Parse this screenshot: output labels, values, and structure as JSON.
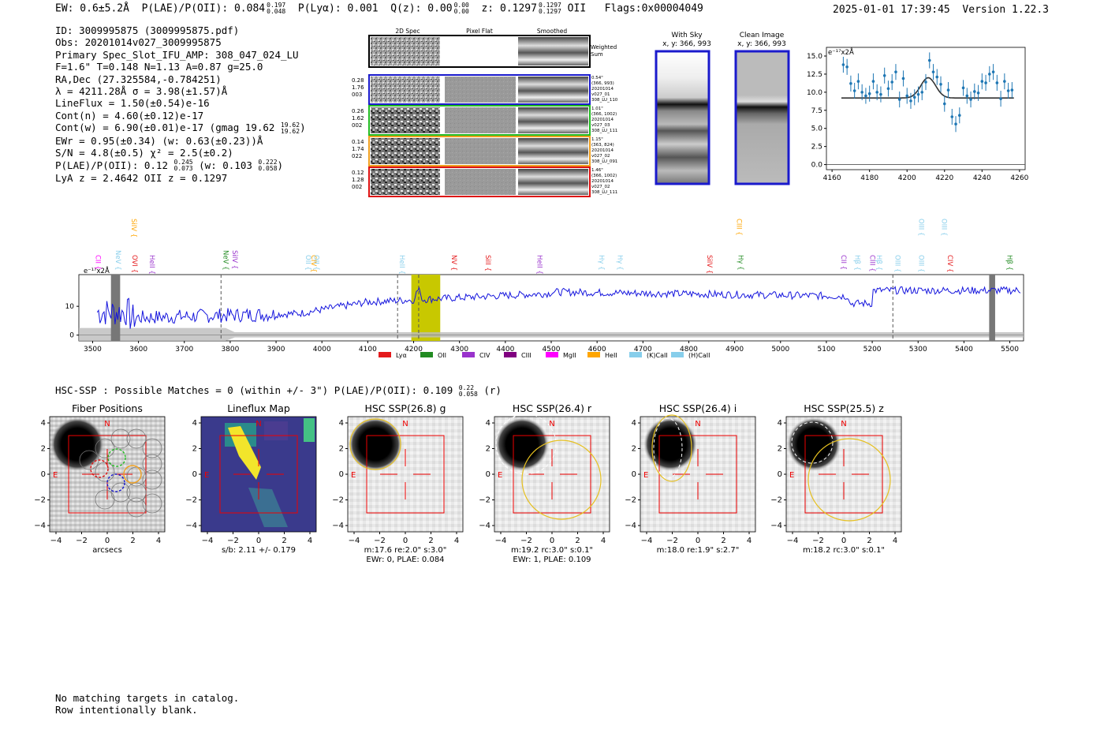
{
  "header": {
    "ew": "EW: 0.6±5.2Å",
    "plae_label": "P(LAE)/P(OII): 0.084",
    "plae_hi": "0.197",
    "plae_lo": "0.048",
    "plya": "P(Lyα): 0.001",
    "qz_label": "Q(z): 0.00",
    "qz_hi": "0.00",
    "qz_lo": "0.00",
    "z_label": "z: 0.1297",
    "z_hi": "0.1297",
    "z_lo": "0.1297",
    "z_line": "OII",
    "flags": "Flags:0x00004049",
    "datetime": "2025-01-01 17:39:45",
    "version": "Version 1.22.3"
  },
  "info": {
    "id": "ID: 3009995875 (3009995875.pdf)",
    "obs": "Obs: 20201014v027_3009995875",
    "primary": "Primary Spec_Slot_IFU_AMP: 308_047_024_LU",
    "seeing": "F=1.6\"  T=0.148  N=1.13  A=0.87  g=25.0",
    "radec": "RA,Dec (27.325584,-0.784251)",
    "wave": "λ = 4211.28Å   σ = 3.98(±1.57)Å",
    "lineflux": "LineFlux = 1.50(±0.54)e-16",
    "contn": "Cont(n) = 4.60(±0.12)e-17",
    "contw": "Cont(w) = 6.90(±0.01)e-17 (gmag 19.62",
    "contw_hi": "19.62",
    "contw_lo": "19.62",
    "ewr": "EWr = 0.95(±0.34) (w: 0.63(±0.23))Å",
    "sn": "S/N = 4.8(±0.5)  χ² = 2.5(±0.2)",
    "plae2": "P(LAE)/P(OII): 0.12",
    "plae2_hi": "0.245",
    "plae2_lo": "0.073",
    "plae2_w": "(w: 0.103",
    "plae2_w_hi": "0.222",
    "plae2_w_lo": "0.058",
    "lya": "LyA z = 2.4642  OII z = 0.1297"
  },
  "cutouts": {
    "headers": [
      "2D Spec",
      "Pixel Flat",
      "Smoothed"
    ],
    "weighted_sum": "Weighted Sum",
    "rows": [
      {
        "left": [
          "0.28",
          "1.76",
          "003"
        ],
        "right": [
          "0.54\"",
          "(366, 993)",
          "20201014",
          "v027_01",
          "308_LU_110"
        ],
        "color": "#1a1acc"
      },
      {
        "left": [
          "0.26",
          "1.62",
          "002"
        ],
        "right": [
          "1.01\"",
          "(366, 1002)",
          "20201014",
          "v027_03",
          "308_LU_111"
        ],
        "color": "#22bb22"
      },
      {
        "left": [
          "0.14",
          "1.74",
          "022"
        ],
        "right": [
          "1.15\"",
          "(363, 824)",
          "20201014",
          "v027_02",
          "308_LU_091"
        ],
        "color": "#f0a020"
      },
      {
        "left": [
          "0.12",
          "1.28",
          "002"
        ],
        "right": [
          "1.46\"",
          "(366, 1002)",
          "20201014",
          "v027_02",
          "308_LU_111"
        ],
        "color": "#dd1111"
      }
    ]
  },
  "sky": {
    "with_sky": "With Sky",
    "with_sky_xy": "x, y: 366, 993",
    "clean": "Clean Image",
    "clean_xy": "x, y: 366, 993"
  },
  "chart_data": [
    {
      "type": "scatter",
      "name": "line-fit-zoom",
      "ylabel": "e⁻¹⁷x2Å",
      "xlim": [
        4157,
        4263
      ],
      "ylim": [
        -0.7,
        16.2
      ],
      "xticks": [
        4160,
        4180,
        4200,
        4220,
        4240,
        4260
      ],
      "yticks": [
        0.0,
        2.5,
        5.0,
        7.5,
        10.0,
        12.5,
        15.0
      ],
      "x": [
        4166,
        4168,
        4170,
        4172,
        4174,
        4176,
        4178,
        4180,
        4182,
        4184,
        4186,
        4188,
        4190,
        4192,
        4194,
        4196,
        4198,
        4200,
        4202,
        4204,
        4206,
        4208,
        4210,
        4212,
        4214,
        4216,
        4218,
        4220,
        4222,
        4224,
        4226,
        4228,
        4230,
        4232,
        4234,
        4236,
        4238,
        4240,
        4242,
        4244,
        4246,
        4248,
        4250,
        4252,
        4254,
        4256
      ],
      "y": [
        13.8,
        13.5,
        11.2,
        10.2,
        11.5,
        10.0,
        9.5,
        9.8,
        11.5,
        10.0,
        9.7,
        12.3,
        10.5,
        11.4,
        12.8,
        9.0,
        11.9,
        9.5,
        8.8,
        9.3,
        9.7,
        10.0,
        11.4,
        14.4,
        12.8,
        12.1,
        11.1,
        8.4,
        10.3,
        6.6,
        5.6,
        6.8,
        10.6,
        9.5,
        9.0,
        10.1,
        9.9,
        11.5,
        11.3,
        12.5,
        12.8,
        11.3,
        9.1,
        11.5,
        10.2,
        10.3
      ],
      "fit": {
        "continuum": 9.2,
        "amplitude": 2.8,
        "center": 4211.3,
        "sigma": 3.98
      }
    },
    {
      "type": "line",
      "name": "full-spectrum",
      "ylabel": "e⁻¹⁷x2Å",
      "xlim": [
        3470,
        5530
      ],
      "ylim": [
        -2,
        21
      ],
      "xticks": [
        3500,
        3600,
        3700,
        3800,
        3900,
        4000,
        4100,
        4200,
        4300,
        4400,
        4500,
        4600,
        4700,
        4800,
        4900,
        5000,
        5100,
        5200,
        5300,
        5400,
        5500
      ],
      "yticks": [
        0,
        10
      ],
      "highlight": [
        4165,
        4258
      ],
      "dashed": [
        3780,
        4165,
        4211,
        5245
      ],
      "hatched": [
        [
          3540,
          3560
        ],
        [
          5455,
          5468
        ]
      ],
      "legend": [
        "Lyα",
        "OII",
        "CIV",
        "CIII",
        "MgII",
        "HeII",
        "(K)CaII",
        "(H)CaII"
      ],
      "legend_colors": [
        "#e41a1c",
        "#228b22",
        "#9932cc",
        "#800080",
        "#ff00ff",
        "#ffa500",
        "#87ceeb",
        "#87ceeb"
      ],
      "lines": [
        {
          "label": "CII",
          "w": 3502,
          "color": "#ff00ff",
          "row": 2
        },
        {
          "label": "NeV",
          "w": 3546,
          "color": "#87ceeb",
          "row": 1
        },
        {
          "label": "SiIV",
          "w": 3580,
          "color": "#ffa500",
          "row": 0
        },
        {
          "label": "OVI",
          "w": 3582,
          "color": "#e41a1c",
          "row": 2
        },
        {
          "label": "HeII",
          "w": 3620,
          "color": "#9932cc",
          "row": 2
        },
        {
          "label": "NeV",
          "w": 3780,
          "color": "#228b22",
          "row": 1
        },
        {
          "label": "SiIV",
          "w": 3800,
          "color": "#9932cc",
          "row": 1
        },
        {
          "label": "OII",
          "w": 3960,
          "color": "#87ceeb",
          "row": 2
        },
        {
          "label": "CIV",
          "w": 3972,
          "color": "#ffa500",
          "row": 2
        },
        {
          "label": "OII",
          "w": 3978,
          "color": "#87ceeb",
          "row": 2
        },
        {
          "label": "HeII",
          "w": 4165,
          "color": "#87ceeb",
          "row": 2
        },
        {
          "label": "NV",
          "w": 4278,
          "color": "#e41a1c",
          "row": 2
        },
        {
          "label": "SiII",
          "w": 4352,
          "color": "#e41a1c",
          "row": 2
        },
        {
          "label": "HeII",
          "w": 4465,
          "color": "#9932cc",
          "row": 2
        },
        {
          "label": "Hγ",
          "w": 4600,
          "color": "#87ceeb",
          "row": 2
        },
        {
          "label": "Hγ",
          "w": 4640,
          "color": "#87ceeb",
          "row": 2
        },
        {
          "label": "SiIV",
          "w": 4835,
          "color": "#e41a1c",
          "row": 2
        },
        {
          "label": "CIII",
          "w": 4900,
          "color": "#ffa500",
          "row": 0
        },
        {
          "label": "Hγ",
          "w": 4903,
          "color": "#228b22",
          "row": 2
        },
        {
          "label": "CII",
          "w": 5128,
          "color": "#9932cc",
          "row": 2
        },
        {
          "label": "Hβ",
          "w": 5158,
          "color": "#87ceeb",
          "row": 2
        },
        {
          "label": "CIII",
          "w": 5190,
          "color": "#9932cc",
          "row": 2
        },
        {
          "label": "Hβ",
          "w": 5205,
          "color": "#87ceeb",
          "row": 2
        },
        {
          "label": "OIII",
          "w": 5245,
          "color": "#87ceeb",
          "row": 2
        },
        {
          "label": "OIII",
          "w": 5297,
          "color": "#87ceeb",
          "row": 0
        },
        {
          "label": "OIII",
          "w": 5297,
          "color": "#87ceeb",
          "row": 2
        },
        {
          "label": "OIII",
          "w": 5347,
          "color": "#87ceeb",
          "row": 0
        },
        {
          "label": "CIV",
          "w": 5360,
          "color": "#e41a1c",
          "row": 2
        },
        {
          "label": "Hβ",
          "w": 5490,
          "color": "#228b22",
          "row": 2
        }
      ]
    }
  ],
  "hsc": {
    "prefix": "HSC-SSP : Possible Matches = 0 (within +/- 3\")  P(LAE)/P(OII): 0.109",
    "hi": "0.22",
    "lo": "0.058",
    "suffix": " (r)"
  },
  "panels": [
    {
      "title": "Fiber Positions",
      "xlabel": "arcsecs",
      "sub": ""
    },
    {
      "title": "Lineflux Map",
      "xlabel": "s/b: 2.11 +/- 0.179",
      "sub": ""
    },
    {
      "title": "HSC SSP(26.8) g",
      "xlabel": "m:17.6  re:2.0\"  s:3.0\"",
      "sub": "EWr: 0, PLAE: 0.084"
    },
    {
      "title": "HSC SSP(26.4) r",
      "xlabel": "m:19.2 rc:3.0\"  s:0.1\"",
      "sub": "EWr: 1, PLAE: 0.109"
    },
    {
      "title": "HSC SSP(26.4) i",
      "xlabel": "m:18.0  re:1.9\"  s:2.7\"",
      "sub": ""
    },
    {
      "title": "HSC SSP(25.5) z",
      "xlabel": "m:18.2 rc:3.0\"  s:0.1\"",
      "sub": ""
    }
  ],
  "panel_axis": {
    "ticks": [
      "−4",
      "−2",
      "0",
      "2",
      "4"
    ],
    "compass_n": "N",
    "compass_e": "E"
  },
  "footer": {
    "line1": "No matching targets in catalog.",
    "line2": "Row intentionally blank."
  }
}
